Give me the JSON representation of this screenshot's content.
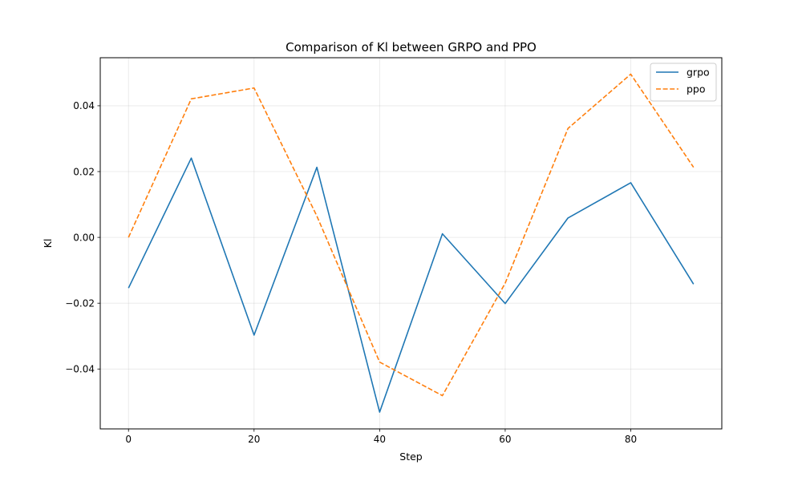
{
  "chart_data": {
    "type": "line",
    "title": "Comparison of Kl between GRPO and PPO",
    "xlabel": "Step",
    "ylabel": "Kl",
    "x": [
      0,
      10,
      20,
      30,
      40,
      50,
      60,
      70,
      80,
      90
    ],
    "xlim": [
      -4.5,
      94.5
    ],
    "ylim": [
      -0.0582,
      0.0546
    ],
    "x_ticks": [
      0,
      20,
      40,
      60,
      80
    ],
    "x_tick_labels": [
      "0",
      "20",
      "40",
      "60",
      "80"
    ],
    "y_ticks": [
      -0.04,
      -0.02,
      0.0,
      0.02,
      0.04
    ],
    "y_tick_labels": [
      "−0.04",
      "−0.02",
      "0.00",
      "0.02",
      "0.04"
    ],
    "grid": true,
    "legend_position": "top-right",
    "series": [
      {
        "name": "grpo",
        "color": "#1f77b4",
        "style": "solid",
        "values": [
          -0.0154,
          0.0241,
          -0.0297,
          0.0213,
          -0.0531,
          0.0011,
          -0.0201,
          0.0059,
          0.0166,
          -0.0142
        ]
      },
      {
        "name": "ppo",
        "color": "#ff7f0e",
        "style": "dashed",
        "values": [
          0.0,
          0.0421,
          0.0454,
          0.0065,
          -0.0379,
          -0.0481,
          -0.0139,
          0.0331,
          0.0496,
          0.0213
        ]
      }
    ]
  }
}
